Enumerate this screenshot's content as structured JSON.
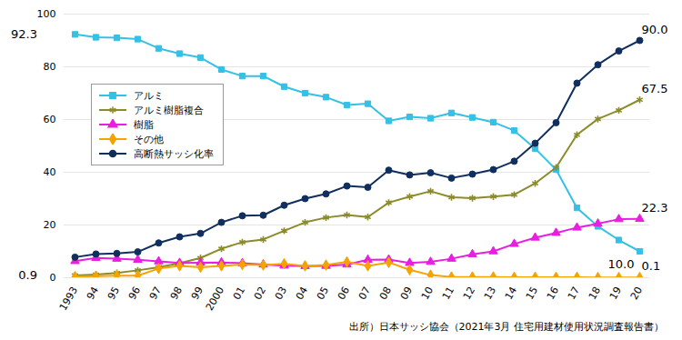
{
  "chart_data": {
    "type": "line",
    "caption": "出所）日本サッシ協会（2021年3月 住宅用建材使用状況調査報告書）",
    "categories": [
      "1993",
      "94",
      "95",
      "96",
      "97",
      "98",
      "99",
      "2000",
      "01",
      "02",
      "03",
      "04",
      "05",
      "06",
      "07",
      "08",
      "09",
      "10",
      "11",
      "12",
      "13",
      "14",
      "15",
      "16",
      "17",
      "18",
      "19",
      "20"
    ],
    "series": [
      {
        "name": "アルミ",
        "color": "#35c0e6",
        "marker": "square",
        "values": [
          92.3,
          91.2,
          91.0,
          90.5,
          87.0,
          85.0,
          83.5,
          79.0,
          76.5,
          76.5,
          72.5,
          70.0,
          68.5,
          65.5,
          66.0,
          59.5,
          61.0,
          60.5,
          62.5,
          60.8,
          59.0,
          55.8,
          49.0,
          41.0,
          26.5,
          19.5,
          14.3,
          10.0
        ]
      },
      {
        "name": "アルミ樹脂複合",
        "color": "#8b8b2a",
        "marker": "asterisk",
        "values": [
          0.9,
          1.2,
          1.8,
          2.8,
          4.0,
          5.5,
          7.5,
          11.0,
          13.5,
          14.5,
          17.8,
          21.0,
          22.8,
          23.8,
          23.0,
          28.5,
          30.8,
          32.8,
          30.5,
          30.2,
          30.8,
          31.5,
          35.8,
          41.8,
          54.2,
          60.2,
          63.5,
          67.5
        ]
      },
      {
        "name": "樹脂",
        "color": "#e81ee0",
        "marker": "triangle",
        "values": [
          6.3,
          7.5,
          7.2,
          6.8,
          6.2,
          5.6,
          5.7,
          5.8,
          5.5,
          5.0,
          4.6,
          4.4,
          4.5,
          5.0,
          6.8,
          6.9,
          5.6,
          6.0,
          7.2,
          8.9,
          10.0,
          12.8,
          15.2,
          17.0,
          19.0,
          20.5,
          22.2,
          22.3
        ]
      },
      {
        "name": "その他",
        "color": "#f5a300",
        "marker": "diamond",
        "values": [
          0.4,
          0.6,
          0.8,
          0.8,
          3.5,
          4.5,
          4.0,
          4.5,
          5.0,
          4.8,
          5.3,
          4.5,
          4.8,
          6.0,
          4.5,
          5.8,
          3.0,
          1.0,
          0.3,
          0.3,
          0.3,
          0.2,
          0.2,
          0.2,
          0.2,
          0.1,
          0.1,
          0.1
        ]
      },
      {
        "name": "高断熱サッシ化率",
        "color": "#102f5e",
        "marker": "circle",
        "values": [
          7.8,
          9.0,
          9.2,
          9.8,
          13.2,
          15.5,
          16.8,
          21.0,
          23.5,
          23.7,
          27.5,
          30.0,
          31.8,
          34.8,
          34.3,
          40.8,
          39.0,
          39.8,
          37.8,
          39.3,
          41.0,
          44.2,
          51.0,
          58.8,
          73.8,
          80.8,
          86.0,
          90.0
        ]
      }
    ],
    "annotations": [
      {
        "text": "92.3",
        "series": "アルミ",
        "x": "1993",
        "y": 92.3
      },
      {
        "text": "0.9",
        "series": "アルミ樹脂複合",
        "x": "1993",
        "y": 0.9
      },
      {
        "text": "90.0",
        "series": "高断熱サッシ化率",
        "x": "20",
        "y": 90.0
      },
      {
        "text": "67.5",
        "series": "アルミ樹脂複合",
        "x": "20",
        "y": 67.5
      },
      {
        "text": "22.3",
        "series": "樹脂",
        "x": "20",
        "y": 22.3
      },
      {
        "text": "10.0",
        "series": "アルミ",
        "x": "20",
        "y": 10.0
      },
      {
        "text": "0.1",
        "series": "その他",
        "x": "20",
        "y": 0.1
      }
    ],
    "ylim": [
      0,
      100
    ],
    "yticks": [
      0,
      20,
      40,
      60,
      80,
      100
    ],
    "grid": true,
    "legend": "left"
  }
}
